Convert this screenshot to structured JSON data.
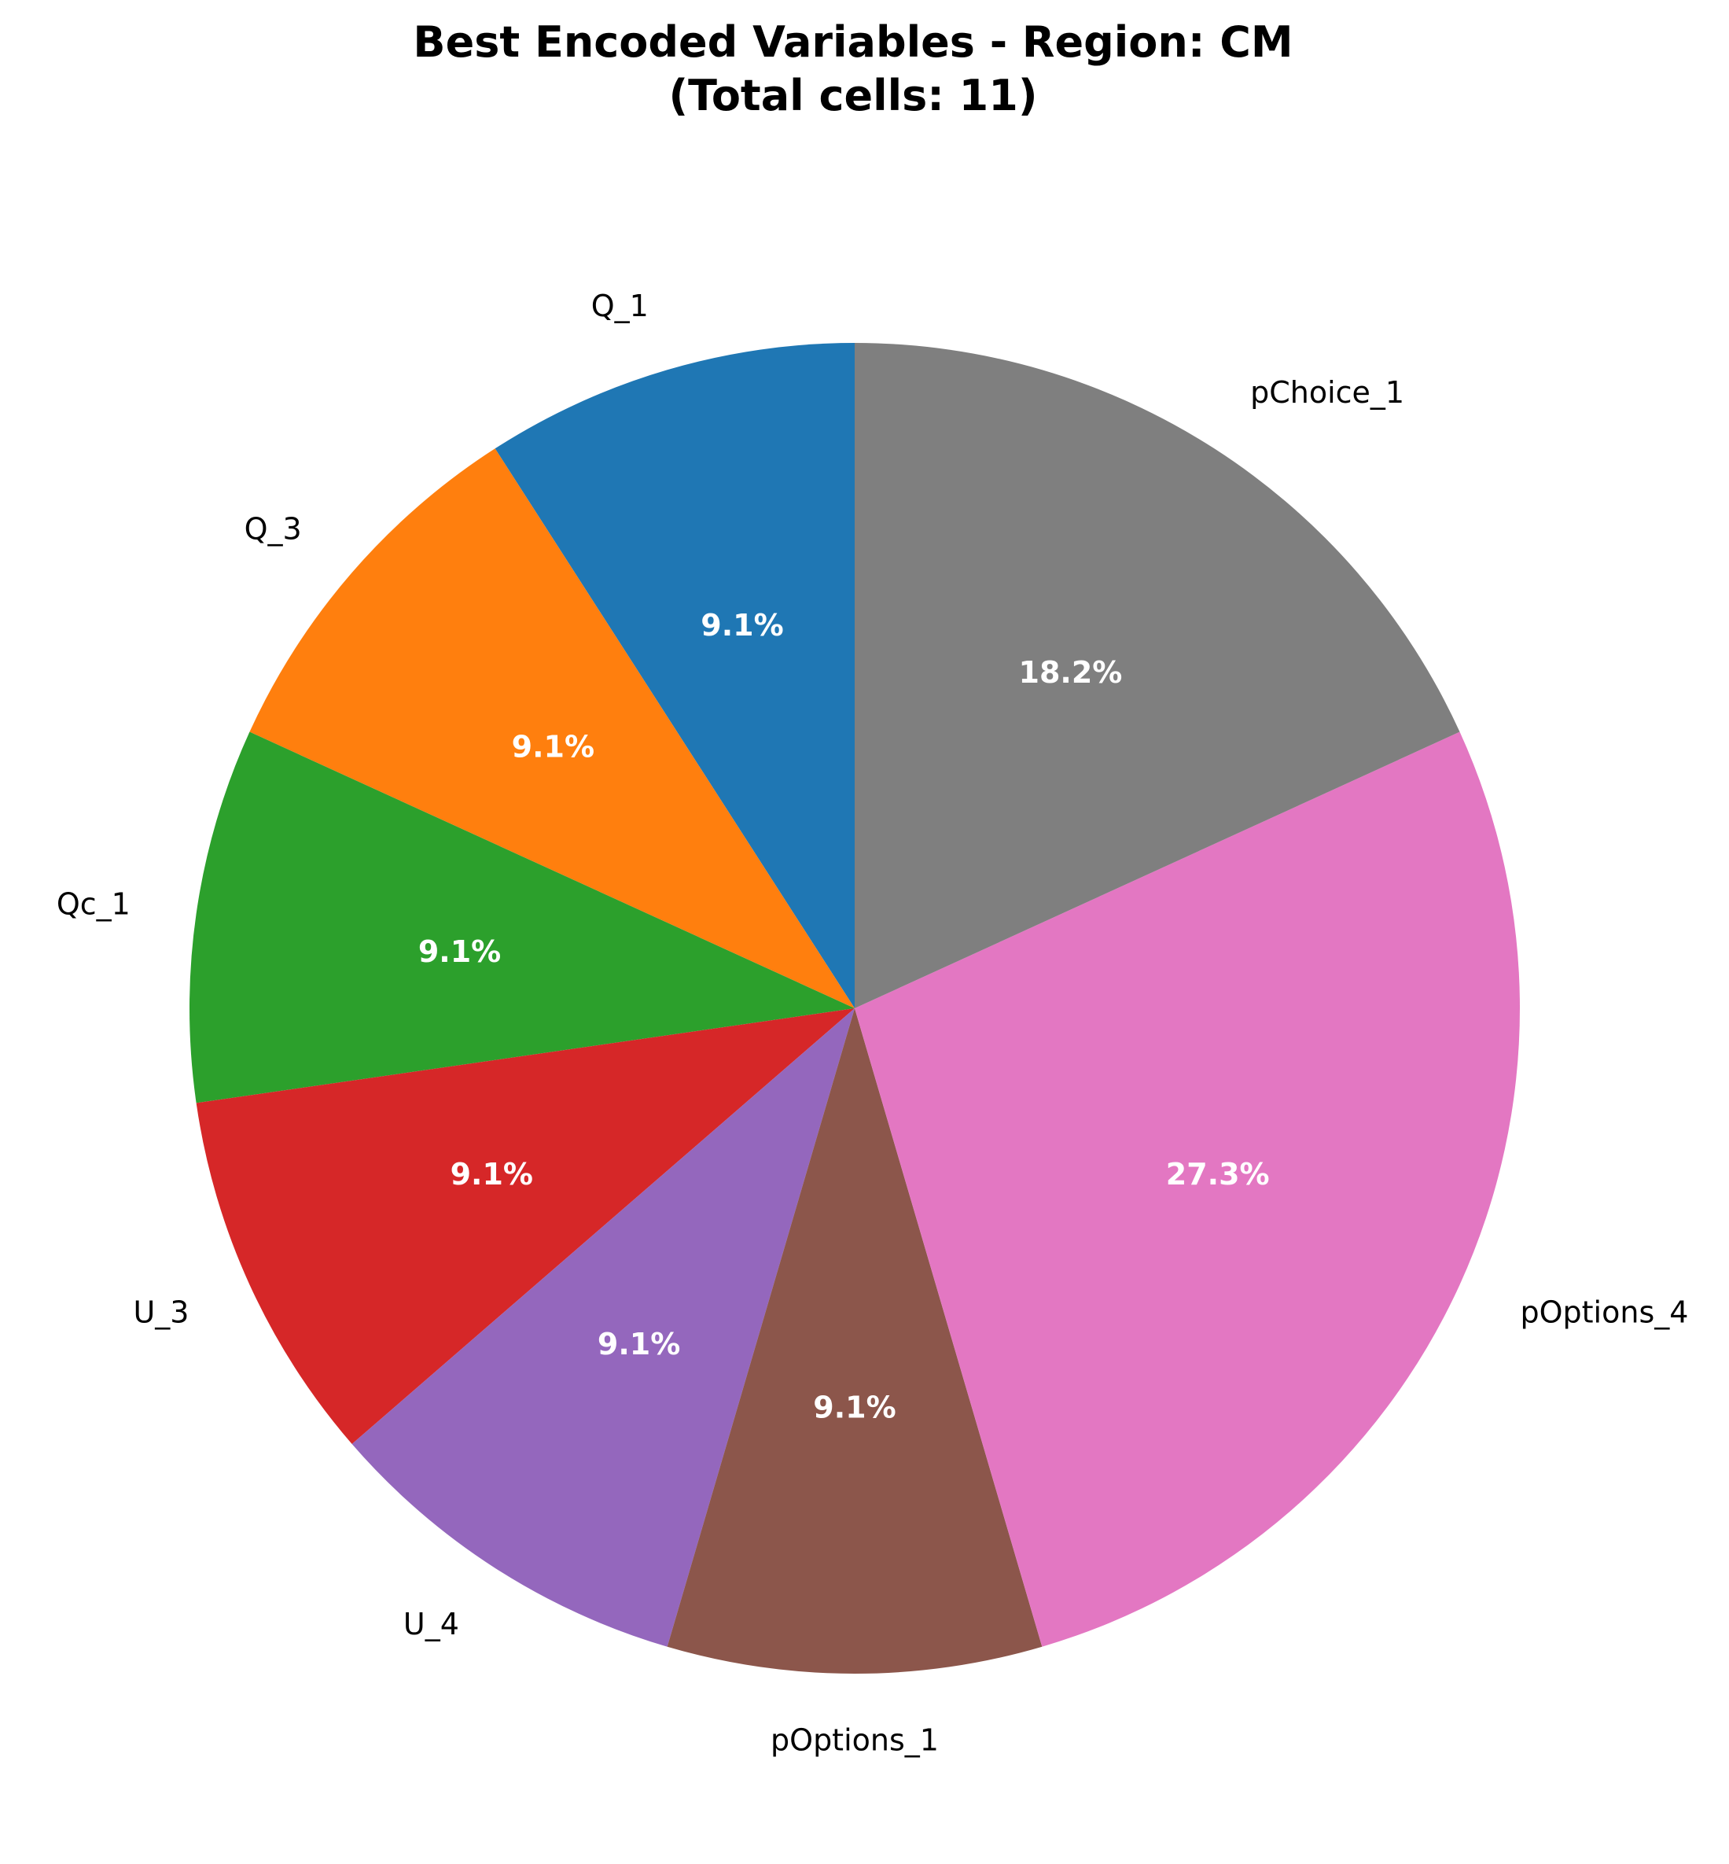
{
  "chart_data": {
    "type": "pie",
    "title": "Best Encoded Variables - Region: CM",
    "subtitle": "(Total cells: 11)",
    "start_angle_deg": 90,
    "direction": "counterclockwise",
    "slices": [
      {
        "label": "Q_1",
        "value": 1,
        "percent_label": "9.1%",
        "color": "#1f77b4"
      },
      {
        "label": "Q_3",
        "value": 1,
        "percent_label": "9.1%",
        "color": "#ff7f0e"
      },
      {
        "label": "Qc_1",
        "value": 1,
        "percent_label": "9.1%",
        "color": "#2ca02c"
      },
      {
        "label": "U_3",
        "value": 1,
        "percent_label": "9.1%",
        "color": "#d62728"
      },
      {
        "label": "U_4",
        "value": 1,
        "percent_label": "9.1%",
        "color": "#9467bd"
      },
      {
        "label": "pOptions_1",
        "value": 1,
        "percent_label": "9.1%",
        "color": "#8c564b"
      },
      {
        "label": "pOptions_4",
        "value": 3,
        "percent_label": "27.3%",
        "color": "#e377c2"
      },
      {
        "label": "pChoice_1",
        "value": 2,
        "percent_label": "18.2%",
        "color": "#7f7f7f"
      }
    ]
  }
}
